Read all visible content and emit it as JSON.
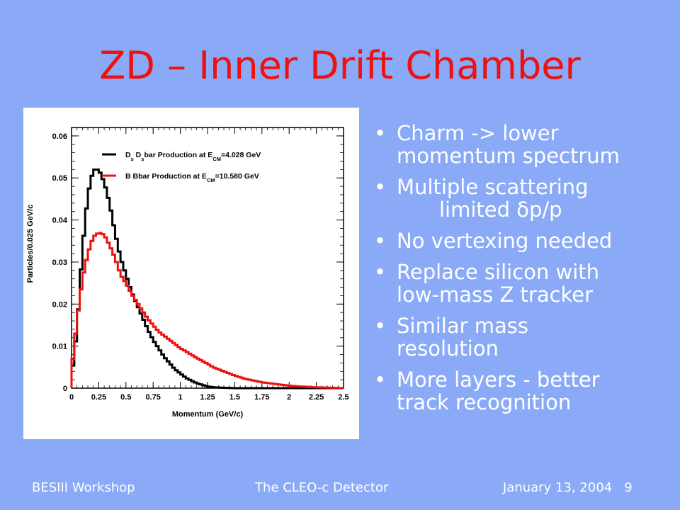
{
  "slide": {
    "title": "ZD – Inner Drift Chamber",
    "bullets": [
      {
        "line1": "Charm -> lower",
        "line2": "momentum spectrum"
      },
      {
        "line1": "Multiple scattering",
        "line2": "limited δp/p"
      },
      {
        "line1": "No vertexing needed",
        "line2": ""
      },
      {
        "line1": "Replace silicon with",
        "line2": "low-mass Z tracker"
      },
      {
        "line1": "Similar mass",
        "line2": "resolution"
      },
      {
        "line1": "More layers - better",
        "line2": "track recognition"
      }
    ],
    "bullet_glyph": "•",
    "footer_left": "BESIII Workshop",
    "footer_center": "The CLEO-c Detector",
    "footer_date": "January 13, 2004",
    "footer_page": "9",
    "colors": {
      "background": "#8aaaf7",
      "title": "#ee1111",
      "text": "#ffffff"
    }
  },
  "chart_data": {
    "type": "line",
    "xlabel": "Momentum (GeV/c)",
    "ylabel": "Particles/0.025 GeV/c",
    "xlim": [
      0,
      2.5
    ],
    "ylim": [
      0,
      0.062
    ],
    "x_ticks": [
      "0",
      "0.25",
      "0.5",
      "0.75",
      "1",
      "1.25",
      "1.5",
      "1.75",
      "2",
      "2.25",
      "2.5"
    ],
    "y_ticks": [
      "0",
      "0.01",
      "0.02",
      "0.03",
      "0.04",
      "0.05",
      "0.06"
    ],
    "legend_position": "top-right",
    "x": [
      0,
      0.05,
      0.1,
      0.15,
      0.2,
      0.25,
      0.3,
      0.35,
      0.4,
      0.45,
      0.5,
      0.55,
      0.6,
      0.65,
      0.7,
      0.75,
      0.8,
      0.85,
      0.9,
      0.95,
      1.0,
      1.05,
      1.1,
      1.15,
      1.2,
      1.25,
      1.3,
      1.4,
      1.5,
      1.6,
      1.75,
      1.9,
      2.0,
      2.1,
      2.25,
      2.4,
      2.5
    ],
    "series": [
      {
        "name": "Ds Dsbar Production at ECM=4.028 GeV",
        "name_parts": {
          "a": "D",
          "a_sub": "s",
          "b": " D",
          "b_sub": "s",
          "c": "bar Production at E",
          "c_sub": "CM",
          "d": "=4.028 GeV"
        },
        "color": "#000000",
        "values": [
          0.0025,
          0.014,
          0.033,
          0.046,
          0.052,
          0.052,
          0.049,
          0.044,
          0.037,
          0.031,
          0.027,
          0.023,
          0.02,
          0.017,
          0.014,
          0.0115,
          0.0095,
          0.0075,
          0.006,
          0.0045,
          0.0035,
          0.0025,
          0.0018,
          0.0012,
          0.0008,
          0.0004,
          0.0002,
          0.0001,
          0,
          0,
          0,
          0,
          0,
          0,
          0,
          0,
          0
        ]
      },
      {
        "name": "B Bbar Production at ECM=10.580 GeV",
        "name_parts": {
          "a": "B Bbar Production at E",
          "a_sub": "CM",
          "b": "=10.580 GeV"
        },
        "color": "#ee1111",
        "values": [
          0.004,
          0.016,
          0.026,
          0.032,
          0.036,
          0.037,
          0.0365,
          0.034,
          0.031,
          0.027,
          0.025,
          0.0225,
          0.0205,
          0.0185,
          0.0165,
          0.015,
          0.0135,
          0.0125,
          0.0115,
          0.0105,
          0.0095,
          0.0088,
          0.008,
          0.0072,
          0.0065,
          0.0058,
          0.005,
          0.004,
          0.003,
          0.0022,
          0.0014,
          0.0009,
          0.0006,
          0.0004,
          0.0002,
          0.0001,
          0
        ]
      }
    ]
  }
}
